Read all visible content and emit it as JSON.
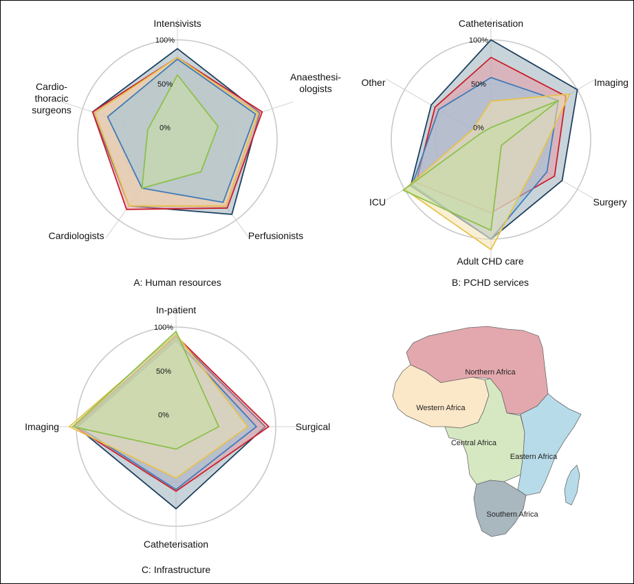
{
  "chart_data": [
    {
      "type": "radar",
      "title": "A: Human resources",
      "axes": [
        "Intensivists",
        "Anaesthesi-\nologists",
        "Perfusionists",
        "Cardiologists",
        "Cardio-\nthoracic\nsurgeons"
      ],
      "ticks": [
        "0%",
        "50%",
        "100%"
      ],
      "rlim": [
        0,
        100
      ],
      "series": [
        {
          "region": "Southern Africa",
          "color": "#1d3f5e",
          "fill": "#9db0bb",
          "values": [
            90,
            85,
            92,
            80,
            88
          ]
        },
        {
          "region": "Northern Africa",
          "color": "#c81e2a",
          "fill": "#e39aa5",
          "values": [
            80,
            88,
            83,
            85,
            88
          ]
        },
        {
          "region": "Western Africa",
          "color": "#e7c24a",
          "fill": "#f3e2b3",
          "values": [
            80,
            83,
            80,
            80,
            85
          ]
        },
        {
          "region": "Eastern Africa",
          "color": "#3e7bb6",
          "fill": "#9cc4dd",
          "values": [
            78,
            80,
            75,
            55,
            70
          ]
        },
        {
          "region": "Central Africa",
          "color": "#8cc04a",
          "fill": "#c6dfa4",
          "values": [
            60,
            35,
            32,
            55,
            22
          ]
        }
      ]
    },
    {
      "type": "radar",
      "title": "B: PCHD services",
      "axes": [
        "Catheterisation",
        "Imaging",
        "Surgery",
        "Adult CHD care",
        "ICU",
        "Other"
      ],
      "ticks": [
        "0%",
        "50%",
        "100%"
      ],
      "rlim": [
        0,
        100
      ],
      "series": [
        {
          "region": "Southern Africa",
          "color": "#1d3f5e",
          "fill": "#9db0bb",
          "values": [
            100,
            100,
            80,
            100,
            92,
            65
          ]
        },
        {
          "region": "Northern Africa",
          "color": "#c81e2a",
          "fill": "#e39aa5",
          "values": [
            80,
            85,
            70,
            70,
            85,
            60
          ]
        },
        {
          "region": "Eastern Africa",
          "color": "#3e7bb6",
          "fill": "#9cc4dd",
          "values": [
            57,
            75,
            60,
            100,
            90,
            55
          ]
        },
        {
          "region": "Western Africa",
          "color": "#e7c24a",
          "fill": "#f3e2b3",
          "values": [
            30,
            90,
            45,
            112,
            100,
            10
          ]
        },
        {
          "region": "Central Africa",
          "color": "#8cc04a",
          "fill": "#c6dfa4",
          "values": [
            0,
            75,
            0,
            90,
            102,
            0
          ]
        }
      ]
    },
    {
      "type": "radar",
      "title": "C: Infrastructure",
      "axes": [
        "In-patient",
        "Surgical",
        "Catheterisation",
        "Imaging"
      ],
      "ticks": [
        "0%",
        "50%",
        "100%"
      ],
      "rlim": [
        0,
        100
      ],
      "series": [
        {
          "region": "Southern Africa",
          "color": "#1d3f5e",
          "fill": "#9db0bb",
          "values": [
            88,
            88,
            80,
            100
          ]
        },
        {
          "region": "Northern Africa",
          "color": "#c81e2a",
          "fill": "#e39aa5",
          "values": [
            90,
            92,
            60,
            102
          ]
        },
        {
          "region": "Eastern Africa",
          "color": "#3e7bb6",
          "fill": "#9cc4dd",
          "values": [
            85,
            78,
            58,
            98
          ]
        },
        {
          "region": "Western Africa",
          "color": "#e7c24a",
          "fill": "#f3e2b3",
          "values": [
            92,
            68,
            45,
            108
          ]
        },
        {
          "region": "Central Africa",
          "color": "#8cc04a",
          "fill": "#c6dfa4",
          "values": [
            95,
            35,
            12,
            104
          ]
        }
      ]
    }
  ],
  "map": {
    "regions": [
      {
        "name": "Northern Africa",
        "color": "#e3a8ad"
      },
      {
        "name": "Western Africa",
        "color": "#fbe8c8"
      },
      {
        "name": "Central Africa",
        "color": "#d6e8c2"
      },
      {
        "name": "Eastern Africa",
        "color": "#b7dbe9"
      },
      {
        "name": "Southern Africa",
        "color": "#a9b7bf"
      }
    ]
  }
}
